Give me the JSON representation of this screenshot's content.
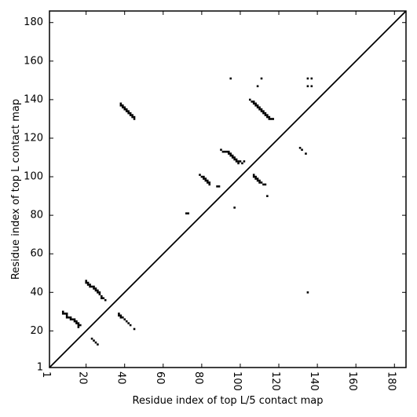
{
  "chart_data": {
    "type": "scatter",
    "title": "",
    "xlabel": "Residue index of top L/5 contact map",
    "ylabel": "Residue index of top L contact map",
    "xlim": [
      1,
      186
    ],
    "ylim": [
      1,
      186
    ],
    "xticks": [
      1,
      20,
      40,
      60,
      80,
      100,
      120,
      140,
      160,
      180
    ],
    "yticks": [
      1,
      20,
      40,
      60,
      80,
      100,
      120,
      140,
      160,
      180
    ],
    "diagonal": true,
    "grid": false,
    "marker": "square",
    "marker_color": "#000000",
    "series": [
      {
        "name": "",
        "points": [
          [
            8,
            30
          ],
          [
            8,
            29
          ],
          [
            9,
            29
          ],
          [
            10,
            29
          ],
          [
            10,
            28
          ],
          [
            10,
            27
          ],
          [
            11,
            27
          ],
          [
            12,
            27
          ],
          [
            12,
            26
          ],
          [
            13,
            26
          ],
          [
            14,
            26
          ],
          [
            14,
            25
          ],
          [
            15,
            25
          ],
          [
            15,
            24
          ],
          [
            16,
            24
          ],
          [
            16,
            23
          ],
          [
            17,
            23
          ],
          [
            16,
            22
          ],
          [
            20,
            46
          ],
          [
            20,
            45
          ],
          [
            21,
            45
          ],
          [
            21,
            44
          ],
          [
            22,
            44
          ],
          [
            22,
            43
          ],
          [
            23,
            43
          ],
          [
            24,
            43
          ],
          [
            24,
            42
          ],
          [
            25,
            42
          ],
          [
            25,
            41
          ],
          [
            26,
            41
          ],
          [
            26,
            40
          ],
          [
            27,
            40
          ],
          [
            27,
            39
          ],
          [
            28,
            38
          ],
          [
            28,
            37
          ],
          [
            29,
            37
          ],
          [
            30,
            36
          ],
          [
            23,
            16
          ],
          [
            24,
            15
          ],
          [
            25,
            14
          ],
          [
            26,
            13
          ],
          [
            37,
            29
          ],
          [
            37,
            28
          ],
          [
            38,
            28
          ],
          [
            38,
            27
          ],
          [
            39,
            27
          ],
          [
            40,
            26
          ],
          [
            41,
            25
          ],
          [
            42,
            24
          ],
          [
            43,
            23
          ],
          [
            45,
            21
          ],
          [
            38,
            138
          ],
          [
            38,
            137
          ],
          [
            39,
            137
          ],
          [
            39,
            136
          ],
          [
            40,
            136
          ],
          [
            40,
            135
          ],
          [
            41,
            135
          ],
          [
            41,
            134
          ],
          [
            42,
            134
          ],
          [
            42,
            133
          ],
          [
            43,
            133
          ],
          [
            43,
            132
          ],
          [
            44,
            132
          ],
          [
            44,
            131
          ],
          [
            45,
            131
          ],
          [
            45,
            130
          ],
          [
            72,
            81
          ],
          [
            73,
            81
          ],
          [
            79,
            101
          ],
          [
            80,
            100
          ],
          [
            81,
            100
          ],
          [
            81,
            99
          ],
          [
            82,
            99
          ],
          [
            82,
            98
          ],
          [
            83,
            98
          ],
          [
            83,
            97
          ],
          [
            84,
            97
          ],
          [
            84,
            96
          ],
          [
            88,
            95
          ],
          [
            89,
            95
          ],
          [
            90,
            114
          ],
          [
            91,
            113
          ],
          [
            92,
            113
          ],
          [
            93,
            113
          ],
          [
            94,
            113
          ],
          [
            94,
            112
          ],
          [
            95,
            112
          ],
          [
            95,
            111
          ],
          [
            96,
            111
          ],
          [
            96,
            110
          ],
          [
            97,
            110
          ],
          [
            97,
            109
          ],
          [
            98,
            109
          ],
          [
            98,
            108
          ],
          [
            99,
            108
          ],
          [
            99,
            107
          ],
          [
            100,
            108
          ],
          [
            101,
            107
          ],
          [
            102,
            108
          ],
          [
            95,
            151
          ],
          [
            97,
            84
          ],
          [
            109,
            147
          ],
          [
            111,
            151
          ],
          [
            105,
            140
          ],
          [
            106,
            139
          ],
          [
            107,
            139
          ],
          [
            107,
            138
          ],
          [
            108,
            138
          ],
          [
            108,
            137
          ],
          [
            109,
            137
          ],
          [
            109,
            136
          ],
          [
            110,
            136
          ],
          [
            110,
            135
          ],
          [
            111,
            135
          ],
          [
            111,
            134
          ],
          [
            112,
            134
          ],
          [
            112,
            133
          ],
          [
            113,
            133
          ],
          [
            113,
            132
          ],
          [
            114,
            132
          ],
          [
            114,
            131
          ],
          [
            115,
            131
          ],
          [
            115,
            130
          ],
          [
            116,
            130
          ],
          [
            117,
            130
          ],
          [
            107,
            101
          ],
          [
            107,
            100
          ],
          [
            108,
            100
          ],
          [
            108,
            99
          ],
          [
            109,
            99
          ],
          [
            109,
            98
          ],
          [
            110,
            98
          ],
          [
            110,
            97
          ],
          [
            111,
            97
          ],
          [
            112,
            96
          ],
          [
            113,
            96
          ],
          [
            114,
            90
          ],
          [
            131,
            115
          ],
          [
            132,
            114
          ],
          [
            134,
            112
          ],
          [
            135,
            151
          ],
          [
            135,
            147
          ],
          [
            137,
            151
          ],
          [
            137,
            147
          ],
          [
            135,
            40
          ]
        ]
      }
    ]
  }
}
